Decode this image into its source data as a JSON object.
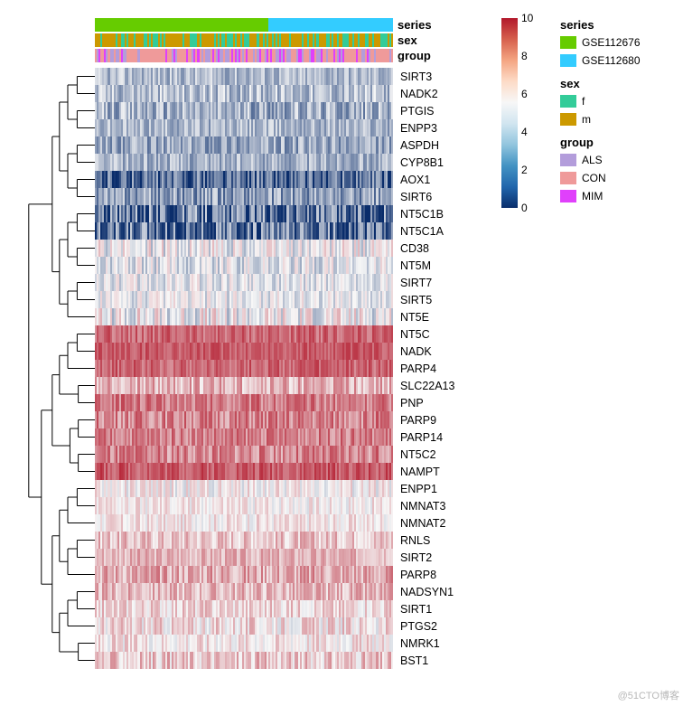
{
  "colorbar": {
    "ticks": [
      "10",
      "8",
      "6",
      "4",
      "2",
      "0"
    ],
    "gradient_stops": [
      "#b2182b",
      "#d6604d",
      "#f4a582",
      "#fddbc7",
      "#f7f7f7",
      "#d1e5f0",
      "#92c5de",
      "#4393c3",
      "#2166ac",
      "#0a2d6b"
    ]
  },
  "column_annotations": {
    "series": {
      "label": "series",
      "split": 0.58,
      "colors": [
        "#66cc00",
        "#33ccff"
      ]
    },
    "sex": {
      "label": "sex",
      "base": "#cc9900",
      "stripe": "#33cc99",
      "density": 0.35
    },
    "group": {
      "label": "group",
      "colors": [
        "#b39ddb",
        "#ef9a9a",
        "#e040fb"
      ]
    }
  },
  "rows": [
    {
      "name": "SIRT3",
      "mean": 3.5,
      "var": 0.6
    },
    {
      "name": "NADK2",
      "mean": 3.6,
      "var": 0.7
    },
    {
      "name": "PTGIS",
      "mean": 3.2,
      "var": 0.8
    },
    {
      "name": "ENPP3",
      "mean": 3.4,
      "var": 0.6
    },
    {
      "name": "ASPDH",
      "mean": 3.0,
      "var": 0.7
    },
    {
      "name": "CYP8B1",
      "mean": 3.3,
      "var": 0.6
    },
    {
      "name": "AOX1",
      "mean": 1.5,
      "var": 1.0
    },
    {
      "name": "SIRT6",
      "mean": 2.8,
      "var": 0.8
    },
    {
      "name": "NT5C1B",
      "mean": 1.8,
      "var": 1.2
    },
    {
      "name": "NT5C1A",
      "mean": 1.6,
      "var": 1.2
    },
    {
      "name": "CD38",
      "mean": 4.8,
      "var": 0.8
    },
    {
      "name": "NT5M",
      "mean": 4.5,
      "var": 0.7
    },
    {
      "name": "SIRT7",
      "mean": 4.6,
      "var": 0.6
    },
    {
      "name": "SIRT5",
      "mean": 4.7,
      "var": 0.6
    },
    {
      "name": "NT5E",
      "mean": 4.9,
      "var": 0.9
    },
    {
      "name": "NT5C",
      "mean": 8.2,
      "var": 0.5
    },
    {
      "name": "NADK",
      "mean": 8.5,
      "var": 0.4
    },
    {
      "name": "PARP4",
      "mean": 8.3,
      "var": 0.5
    },
    {
      "name": "SLC22A13",
      "mean": 6.5,
      "var": 0.7
    },
    {
      "name": "PNP",
      "mean": 7.8,
      "var": 0.6
    },
    {
      "name": "PARP9",
      "mean": 7.6,
      "var": 0.7
    },
    {
      "name": "PARP14",
      "mean": 7.7,
      "var": 0.6
    },
    {
      "name": "NT5C2",
      "mean": 7.5,
      "var": 0.7
    },
    {
      "name": "NAMPT",
      "mean": 8.6,
      "var": 0.5
    },
    {
      "name": "ENPP1",
      "mean": 5.2,
      "var": 0.6
    },
    {
      "name": "NMNAT3",
      "mean": 5.3,
      "var": 0.5
    },
    {
      "name": "NMNAT2",
      "mean": 5.4,
      "var": 0.5
    },
    {
      "name": "RNLS",
      "mean": 6.2,
      "var": 0.6
    },
    {
      "name": "SIRT2",
      "mean": 6.5,
      "var": 0.5
    },
    {
      "name": "PARP8",
      "mean": 6.8,
      "var": 0.7
    },
    {
      "name": "NADSYN1",
      "mean": 6.4,
      "var": 0.6
    },
    {
      "name": "SIRT1",
      "mean": 5.8,
      "var": 0.6
    },
    {
      "name": "PTGS2",
      "mean": 5.6,
      "var": 0.7
    },
    {
      "name": "NMRK1",
      "mean": 5.5,
      "var": 0.6
    },
    {
      "name": "BST1",
      "mean": 6.0,
      "var": 0.7
    }
  ],
  "n_columns": 160,
  "value_range": [
    0,
    10
  ],
  "legends": {
    "series": {
      "title": "series",
      "items": [
        {
          "color": "#66cc00",
          "label": "GSE112676"
        },
        {
          "color": "#33ccff",
          "label": "GSE112680"
        }
      ]
    },
    "sex": {
      "title": "sex",
      "items": [
        {
          "color": "#33cc99",
          "label": "f"
        },
        {
          "color": "#cc9900",
          "label": "m"
        }
      ]
    },
    "group": {
      "title": "group",
      "items": [
        {
          "color": "#b39ddb",
          "label": "ALS"
        },
        {
          "color": "#ef9a9a",
          "label": "CON"
        },
        {
          "color": "#e040fb",
          "label": "MIM"
        }
      ]
    }
  },
  "dendrogram": {
    "structure": "hierarchical",
    "n_leaves": 35,
    "major_clusters": [
      [
        0,
        14
      ],
      [
        15,
        23
      ],
      [
        24,
        34
      ]
    ]
  },
  "watermark": "@51CTO博客"
}
